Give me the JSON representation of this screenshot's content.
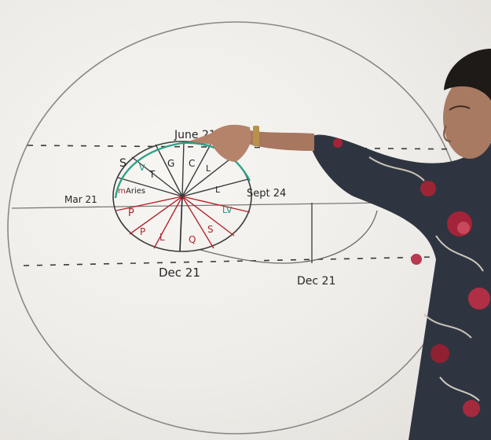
{
  "scene": {
    "subject": "whiteboard-lecture"
  },
  "whiteboard": {
    "labels": {
      "june": "June 21",
      "march": "Mar 21",
      "sept": "Sept 24",
      "dec_left": "Dec 21",
      "dec_right": "Dec 21"
    },
    "wedge_marks": {
      "s": "S",
      "v": "V",
      "t": "T",
      "g": "G",
      "c": "C",
      "l": "L",
      "aries": "Aries",
      "m": "m",
      "p1": "P",
      "p2": "P",
      "l2": "L",
      "q": "Q",
      "s2": "S",
      "lv": "LV",
      "l3": "L"
    },
    "ink_colors": {
      "black": "#262626",
      "red": "#b3262c",
      "teal": "#1f8f7a"
    }
  },
  "presenter": {
    "description_icon": "person-pointing"
  }
}
